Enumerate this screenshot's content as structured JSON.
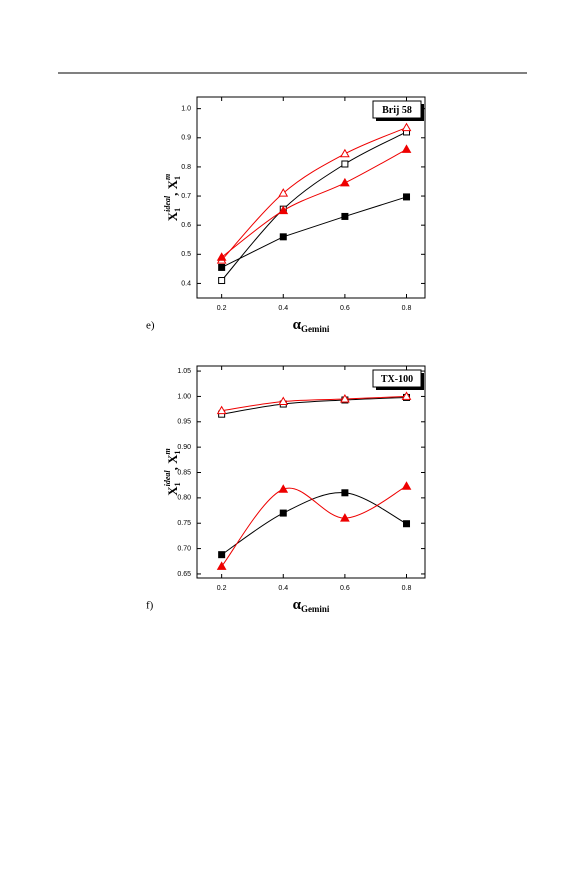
{
  "chart_data": [
    {
      "type": "line",
      "panel_label": "e)",
      "legend_label": "Brij 58",
      "y_label": [
        "X",
        "1",
        "ideal",
        ", X",
        "1",
        "m"
      ],
      "x_label": [
        "α",
        "Gemini"
      ],
      "x": [
        0.2,
        0.4,
        0.6,
        0.8
      ],
      "xlim": [
        0.12,
        0.86
      ],
      "xticks": [
        0.2,
        0.4,
        0.6,
        0.8
      ],
      "ylim": [
        0.35,
        1.04
      ],
      "yticks": [
        0.4,
        0.5,
        0.6,
        0.7,
        0.8,
        0.9,
        {
          "value": 1,
          "label": "1.0"
        }
      ],
      "series": [
        {
          "color": "#000000",
          "marker": "square",
          "filled": true,
          "curve": "straight",
          "values": [
            0.455,
            0.56,
            0.63,
            0.697
          ]
        },
        {
          "color": "#000000",
          "marker": "square",
          "filled": false,
          "curve": "smooth",
          "values": [
            0.41,
            0.655,
            0.81,
            0.92
          ]
        },
        {
          "color": "#ee0000",
          "marker": "triangle",
          "filled": false,
          "curve": "smooth",
          "values": [
            0.48,
            0.71,
            0.845,
            0.935
          ]
        },
        {
          "color": "#ee0000",
          "marker": "triangle",
          "filled": true,
          "curve": "smooth",
          "values": [
            0.49,
            0.65,
            0.745,
            0.86
          ]
        }
      ]
    },
    {
      "type": "line",
      "panel_label": "f)",
      "legend_label": "TX-100",
      "y_label": [
        "X",
        "1",
        "ideal",
        ", X",
        "1",
        "m"
      ],
      "x_label": [
        "α",
        "Gemini"
      ],
      "x": [
        0.2,
        0.4,
        0.6,
        0.8
      ],
      "xlim": [
        0.12,
        0.86
      ],
      "xticks": [
        0.2,
        0.4,
        0.6,
        0.8
      ],
      "ylim": [
        0.642,
        1.06
      ],
      "yticks": [
        0.65,
        {
          "value": 0.7,
          "label": "0.70"
        },
        0.75,
        {
          "value": 0.8,
          "label": "0.80"
        },
        0.85,
        {
          "value": 0.9,
          "label": "0.90"
        },
        0.95,
        {
          "value": 1,
          "label": "1.00"
        },
        1.05
      ],
      "series": [
        {
          "color": "#000000",
          "marker": "square",
          "filled": true,
          "curve": "smooth",
          "values": [
            0.688,
            0.77,
            0.81,
            0.749
          ]
        },
        {
          "color": "#000000",
          "marker": "square",
          "filled": false,
          "curve": "smooth",
          "values": [
            0.965,
            0.985,
            0.993,
            0.998
          ]
        },
        {
          "color": "#ee0000",
          "marker": "triangle",
          "filled": false,
          "curve": "smooth",
          "values": [
            0.972,
            0.99,
            0.995,
            1.0
          ]
        },
        {
          "color": "#ee0000",
          "marker": "triangle",
          "filled": true,
          "curve": "smooth",
          "values": [
            0.665,
            0.817,
            0.76,
            0.823
          ]
        }
      ]
    }
  ]
}
